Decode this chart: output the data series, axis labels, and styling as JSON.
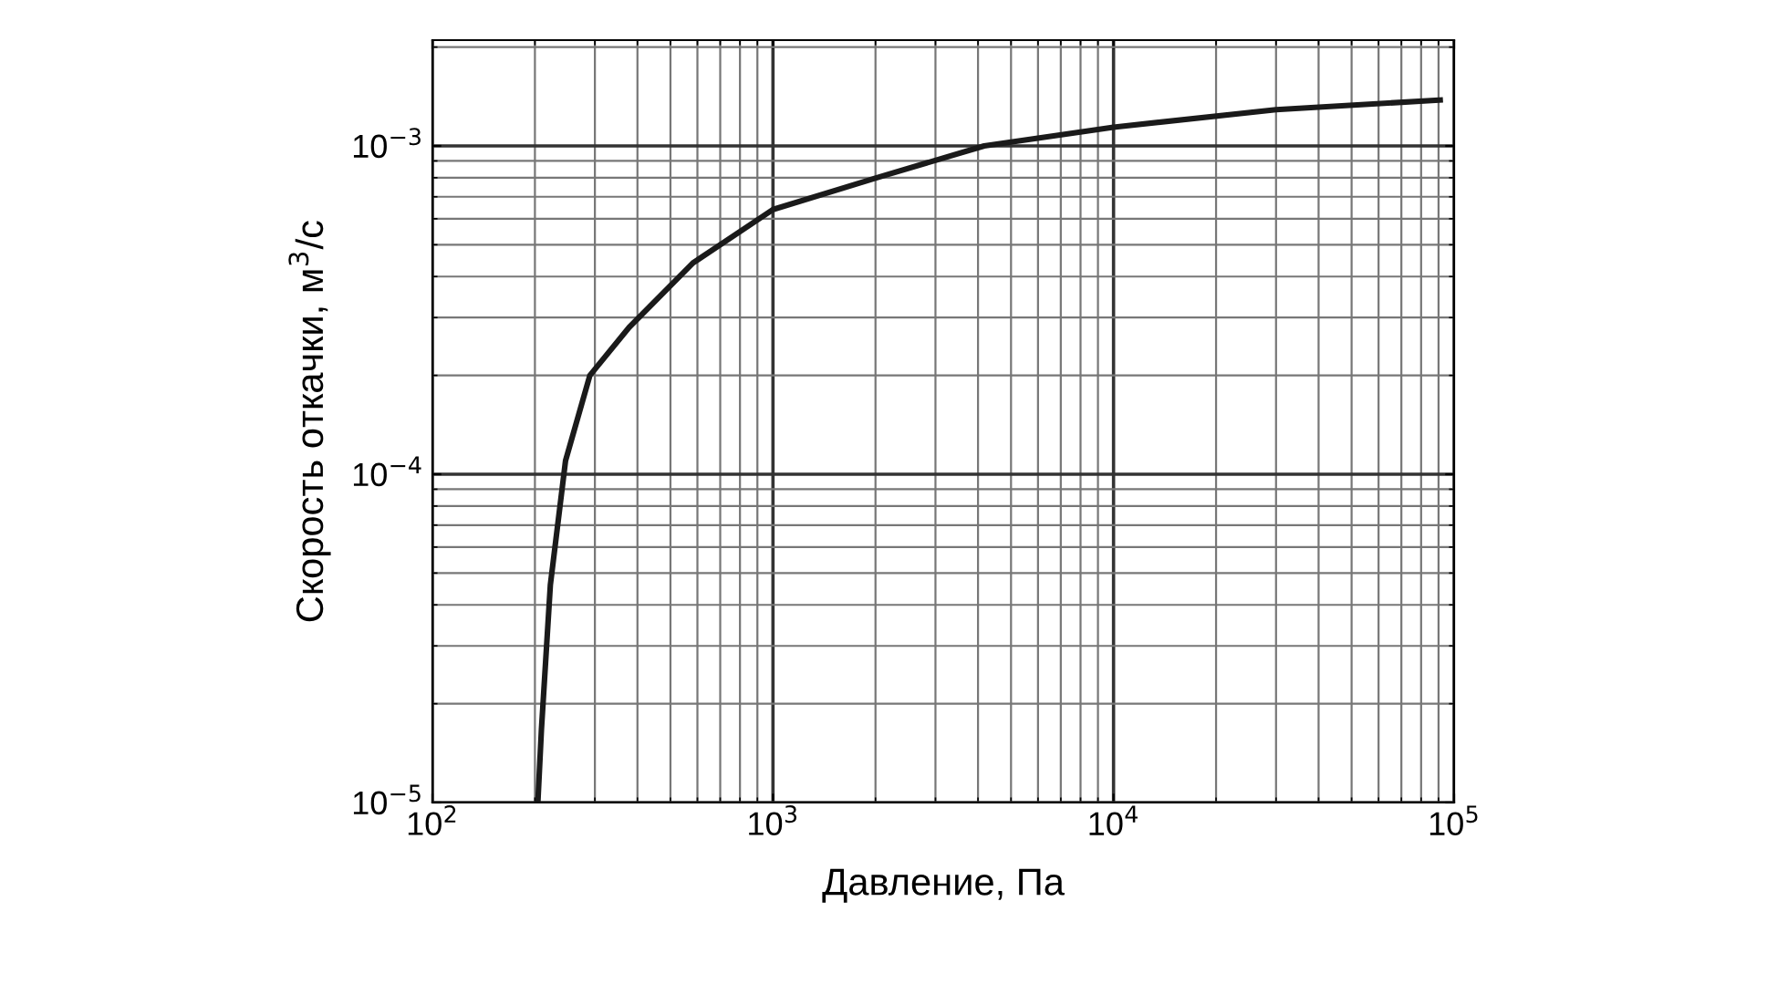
{
  "chart_data": {
    "type": "line",
    "xlabel": "Давление, Па",
    "ylabel": "Скорость откачки, м$^{3}$/с",
    "log": "xy",
    "grid": true,
    "color": "#1a1a1a",
    "xlim": [
      100,
      100000
    ],
    "ylim": [
      1e-05,
      0.0021
    ],
    "xticks": [
      {
        "value": 100,
        "label": "10$^{2}$"
      },
      {
        "value": 1000,
        "label": "10$^{3}$"
      },
      {
        "value": 10000,
        "label": "10$^{4}$"
      },
      {
        "value": 100000,
        "label": "10$^{5}$"
      }
    ],
    "yticks": [
      {
        "value": 1e-05,
        "label": "10$^{−5}$"
      },
      {
        "value": 0.0001,
        "label": "10$^{−4}$"
      },
      {
        "value": 0.001,
        "label": "10$^{−3}$"
      }
    ],
    "x": [
      204,
      209,
      222,
      246,
      290,
      378,
      582,
      1000,
      2018,
      4170,
      10000,
      30000,
      91000
    ],
    "values": [
      1e-05,
      1.67e-05,
      4.6e-05,
      0.00011,
      0.0002,
      0.00028,
      0.00044,
      0.00064,
      0.0008,
      0.001,
      0.00114,
      0.00129,
      0.00138
    ]
  }
}
